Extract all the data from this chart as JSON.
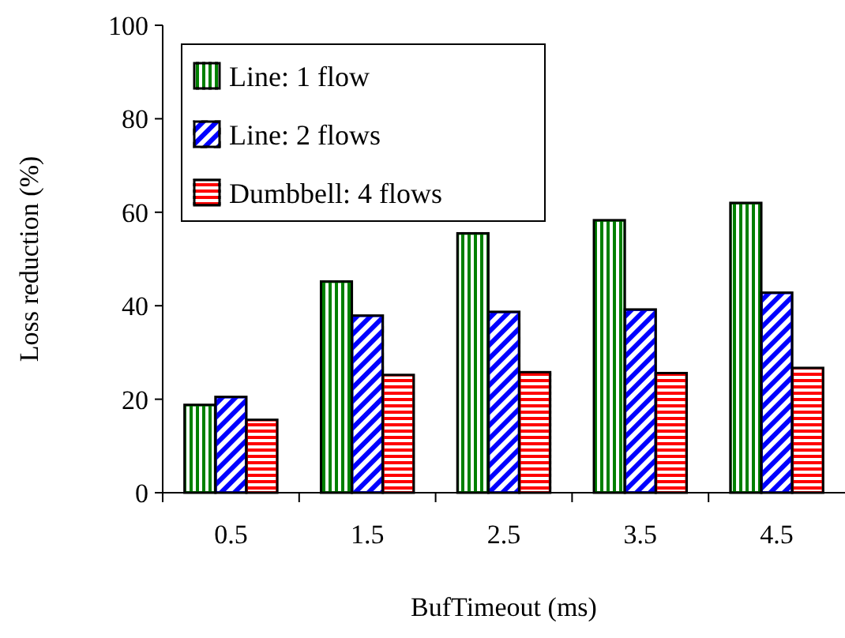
{
  "chart_data": {
    "type": "bar",
    "xlabel": "BufTimeout (ms)",
    "ylabel": "Loss reduction (%)",
    "categories": [
      "0.5",
      "1.5",
      "2.5",
      "3.5",
      "4.5"
    ],
    "series": [
      {
        "name": "Line: 1 flow",
        "color": "#008000",
        "values": [
          18.8,
          45.2,
          55.5,
          58.3,
          62
        ]
      },
      {
        "name": "Line: 2 flows",
        "color": "#0000ff",
        "values": [
          20.5,
          37.9,
          38.7,
          39.2,
          42.8
        ]
      },
      {
        "name": "Dumbbell: 4 flows",
        "color": "#ff0000",
        "values": [
          15.6,
          25.2,
          25.8,
          25.6,
          26.7
        ]
      }
    ],
    "ylim": [
      0,
      100
    ],
    "yticks": [
      0,
      20,
      40,
      60,
      80,
      100
    ],
    "grid": false,
    "legend": "top left"
  }
}
